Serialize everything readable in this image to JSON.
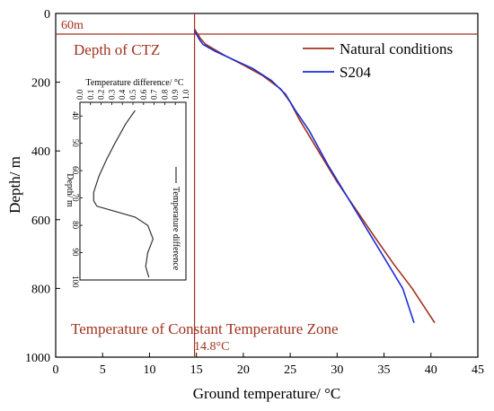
{
  "chart_data": [
    {
      "type": "line",
      "xlabel": "Ground temperature/ °C",
      "ylabel": "Depth/ m",
      "xlim": [
        0,
        45
      ],
      "ylim": [
        1000,
        0
      ],
      "x_ticks": [
        "0",
        "5",
        "10",
        "15",
        "20",
        "25",
        "30",
        "35",
        "40",
        "45"
      ],
      "y_ticks": [
        "0",
        "200",
        "400",
        "600",
        "800",
        "1000"
      ],
      "series": [
        {
          "name": "Natural conditions",
          "color": "#a0321e",
          "points": [
            [
              14.8,
              45
            ],
            [
              15.0,
              55
            ],
            [
              15.2,
              62
            ],
            [
              15.4,
              72
            ],
            [
              16.0,
              90
            ],
            [
              18.0,
              122
            ],
            [
              20.0,
              150
            ],
            [
              22.0,
              180
            ],
            [
              24.0,
              220
            ],
            [
              25.0,
              258
            ],
            [
              26.0,
              310
            ],
            [
              28.0,
              400
            ],
            [
              30.0,
              490
            ],
            [
              32.0,
              570
            ],
            [
              34.0,
              650
            ],
            [
              36.0,
              728
            ],
            [
              38.0,
              800
            ],
            [
              40.4,
              900
            ]
          ]
        },
        {
          "name": "S204",
          "color": "#1a2ed6",
          "points": [
            [
              14.8,
              50
            ],
            [
              15.0,
              60
            ],
            [
              15.3,
              75
            ],
            [
              15.7,
              90
            ],
            [
              17.0,
              110
            ],
            [
              19.0,
              135
            ],
            [
              21.0,
              160
            ],
            [
              23.0,
              195
            ],
            [
              24.5,
              235
            ],
            [
              25.5,
              280
            ],
            [
              27.0,
              340
            ],
            [
              29.0,
              440
            ],
            [
              31.0,
              530
            ],
            [
              33.0,
              620
            ],
            [
              35.0,
              710
            ],
            [
              37.0,
              800
            ],
            [
              38.2,
              900
            ]
          ]
        }
      ],
      "reference_lines": {
        "horizontal": {
          "value": 60,
          "label": "60m",
          "text": "Depth of CTZ"
        },
        "vertical": {
          "value": 14.8,
          "label": "14.8°C",
          "text": "Temperature of Constant Temperature Zone"
        }
      },
      "legend": "top-right"
    },
    {
      "type": "line",
      "xlabel": "Temperature difference/ °C",
      "ylabel": "Depth/ m",
      "xlim": [
        0.0,
        1.0
      ],
      "ylim": [
        100,
        35
      ],
      "x_ticks": [
        "0.0",
        "0.1",
        "0.2",
        "0.3",
        "0.4",
        "0.5",
        "0.6",
        "0.7",
        "0.8",
        "0.9",
        "1.0"
      ],
      "y_ticks": [
        "40",
        "50",
        "60",
        "70",
        "80",
        "90",
        "100"
      ],
      "series": [
        {
          "name": "Temperature difference",
          "color": "#333333",
          "points": [
            [
              0.52,
              38
            ],
            [
              0.43,
              43
            ],
            [
              0.33,
              50
            ],
            [
              0.25,
              56
            ],
            [
              0.18,
              62
            ],
            [
              0.13,
              68
            ],
            [
              0.13,
              71
            ],
            [
              0.16,
              73
            ],
            [
              0.34,
              75
            ],
            [
              0.52,
              77
            ],
            [
              0.64,
              80
            ],
            [
              0.69,
              85
            ],
            [
              0.64,
              90
            ],
            [
              0.62,
              95
            ],
            [
              0.65,
              99
            ]
          ]
        }
      ],
      "legend": "right-vertical"
    }
  ],
  "labels": {
    "x_axis": "Ground temperature/ °C",
    "y_axis": "Depth/ m",
    "line_60m": "60m",
    "ctz_depth": "Depth of CTZ",
    "ctz_temp": "Temperature of Constant Temperature Zone",
    "temp_14_8": "14.8°C",
    "legend_natural": "Natural conditions",
    "legend_s204": "S204",
    "inset_x_axis": "Temperature difference/ °C",
    "inset_y_axis": "Depth/ m",
    "inset_legend": "Temperature difference"
  }
}
